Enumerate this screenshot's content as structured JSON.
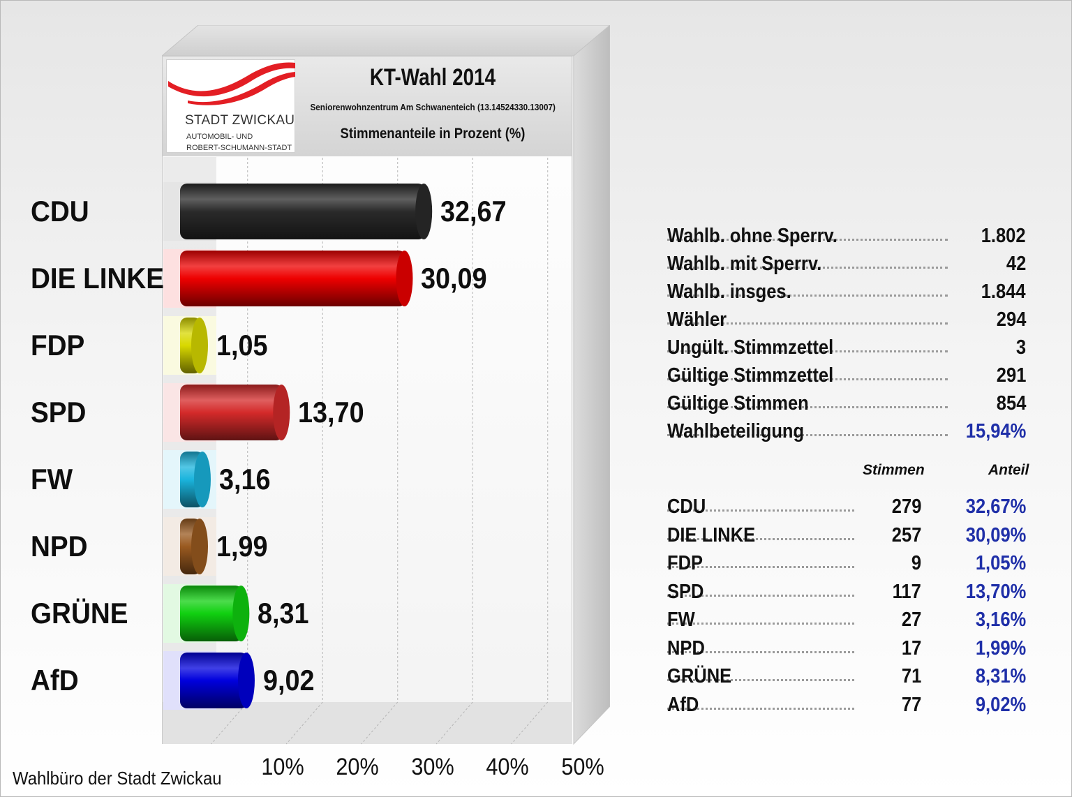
{
  "chart_data": {
    "type": "bar",
    "orientation": "horizontal",
    "title": "KT-Wahl 2014",
    "subtitle": "Seniorenwohnzentrum Am Schwanenteich (13.14524330.13007)",
    "caption": "Stimmenanteile in Prozent (%)",
    "categories": [
      "CDU",
      "DIE LINKE",
      "FDP",
      "SPD",
      "FW",
      "NPD",
      "GRÜNE",
      "AfD"
    ],
    "values": [
      32.67,
      30.09,
      1.05,
      13.7,
      3.16,
      1.99,
      8.31,
      9.02
    ],
    "value_labels": [
      "32,67",
      "30,09",
      "1,05",
      "13,70",
      "3,16",
      "1,99",
      "8,31",
      "9,02"
    ],
    "colors": [
      "#2a2a2a",
      "#ee0000",
      "#d8d800",
      "#d42a2a",
      "#1ab4dd",
      "#9a5a20",
      "#10d010",
      "#0000dd"
    ],
    "xlim": [
      0,
      50
    ],
    "xticks": [
      "10%",
      "20%",
      "30%",
      "40%",
      "50%"
    ],
    "xtick_values": [
      10,
      20,
      30,
      40,
      50
    ],
    "grid": true
  },
  "logo": {
    "line1": "STADT ZWICKAU",
    "line2": "AUTOMOBIL- UND",
    "line3": "ROBERT-SCHUMANN-STADT",
    "accent": "#e31e24"
  },
  "footer": "Wahlbüro der Stadt Zwickau",
  "stats": [
    {
      "label": "Wahlb. ohne Sperrv.",
      "value": "1.802"
    },
    {
      "label": "Wahlb. mit Sperrv.",
      "value": "42"
    },
    {
      "label": "Wahlb. insges.",
      "value": "1.844"
    },
    {
      "label": "Wähler",
      "value": "294"
    },
    {
      "label": "Ungült. Stimmzettel",
      "value": "3"
    },
    {
      "label": "Gültige Stimmzettel",
      "value": "291"
    },
    {
      "label": "Gültige Stimmen",
      "value": "854"
    },
    {
      "label": "Wahlbeteiligung",
      "value": "15,94%"
    }
  ],
  "party_table": {
    "header_votes": "Stimmen",
    "header_share": "Anteil",
    "rows": [
      {
        "party": "CDU",
        "votes": "279",
        "share": "32,67%"
      },
      {
        "party": "DIE LINKE",
        "votes": "257",
        "share": "30,09%"
      },
      {
        "party": "FDP",
        "votes": "9",
        "share": "1,05%"
      },
      {
        "party": "SPD",
        "votes": "117",
        "share": "13,70%"
      },
      {
        "party": "FW",
        "votes": "27",
        "share": "3,16%"
      },
      {
        "party": "NPD",
        "votes": "17",
        "share": "1,99%"
      },
      {
        "party": "GRÜNE",
        "votes": "71",
        "share": "8,31%"
      },
      {
        "party": "AfD",
        "votes": "77",
        "share": "9,02%"
      }
    ]
  }
}
